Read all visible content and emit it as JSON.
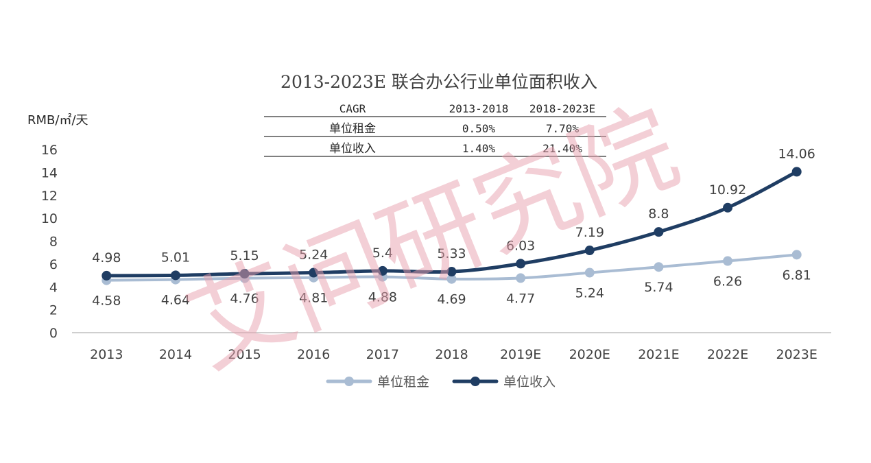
{
  "colors": {
    "rent": "#A9BCD3",
    "income": "#1F3D63",
    "axis": "#BFBFBF",
    "text": "#404040",
    "watermark": "#E8A0AE"
  },
  "watermark": "艾问研究院",
  "cagr_table": {
    "headers": [
      "CAGR",
      "2013-2018",
      "2018-2023E"
    ],
    "rows": [
      [
        "单位租金",
        "0.50%",
        "7.70%"
      ],
      [
        "单位收入",
        "1.40%",
        "21.40%"
      ]
    ]
  },
  "legend": [
    "单位租金",
    "单位收入"
  ],
  "chart_data": {
    "type": "line",
    "title": "2013-2023E 联合办公行业单位面积收入",
    "ylabel": "RMB/㎡/天",
    "xlabel": "",
    "categories": [
      "2013",
      "2014",
      "2015",
      "2016",
      "2017",
      "2018",
      "2019E",
      "2020E",
      "2021E",
      "2022E",
      "2023E"
    ],
    "ylim": [
      0,
      16
    ],
    "yticks": [
      "0",
      "2",
      "4",
      "6",
      "8",
      "10",
      "12",
      "14",
      "16"
    ],
    "grid": false,
    "legend_position": "bottom",
    "series": [
      {
        "name": "单位租金",
        "values": [
          4.58,
          4.64,
          4.76,
          4.81,
          4.88,
          4.69,
          4.77,
          5.24,
          5.74,
          6.26,
          6.81
        ],
        "labels": [
          "4.58",
          "4.64",
          "4.76",
          "4.81",
          "4.88",
          "4.69",
          "4.77",
          "5.24",
          "5.74",
          "6.26",
          "6.81"
        ]
      },
      {
        "name": "单位收入",
        "values": [
          4.98,
          5.01,
          5.15,
          5.24,
          5.4,
          5.33,
          6.03,
          7.19,
          8.8,
          10.92,
          14.06
        ],
        "labels": [
          "4.98",
          "5.01",
          "5.15",
          "5.24",
          "5.4",
          "5.33",
          "6.03",
          "7.19",
          "8.8",
          "10.92",
          "14.06"
        ]
      }
    ]
  }
}
